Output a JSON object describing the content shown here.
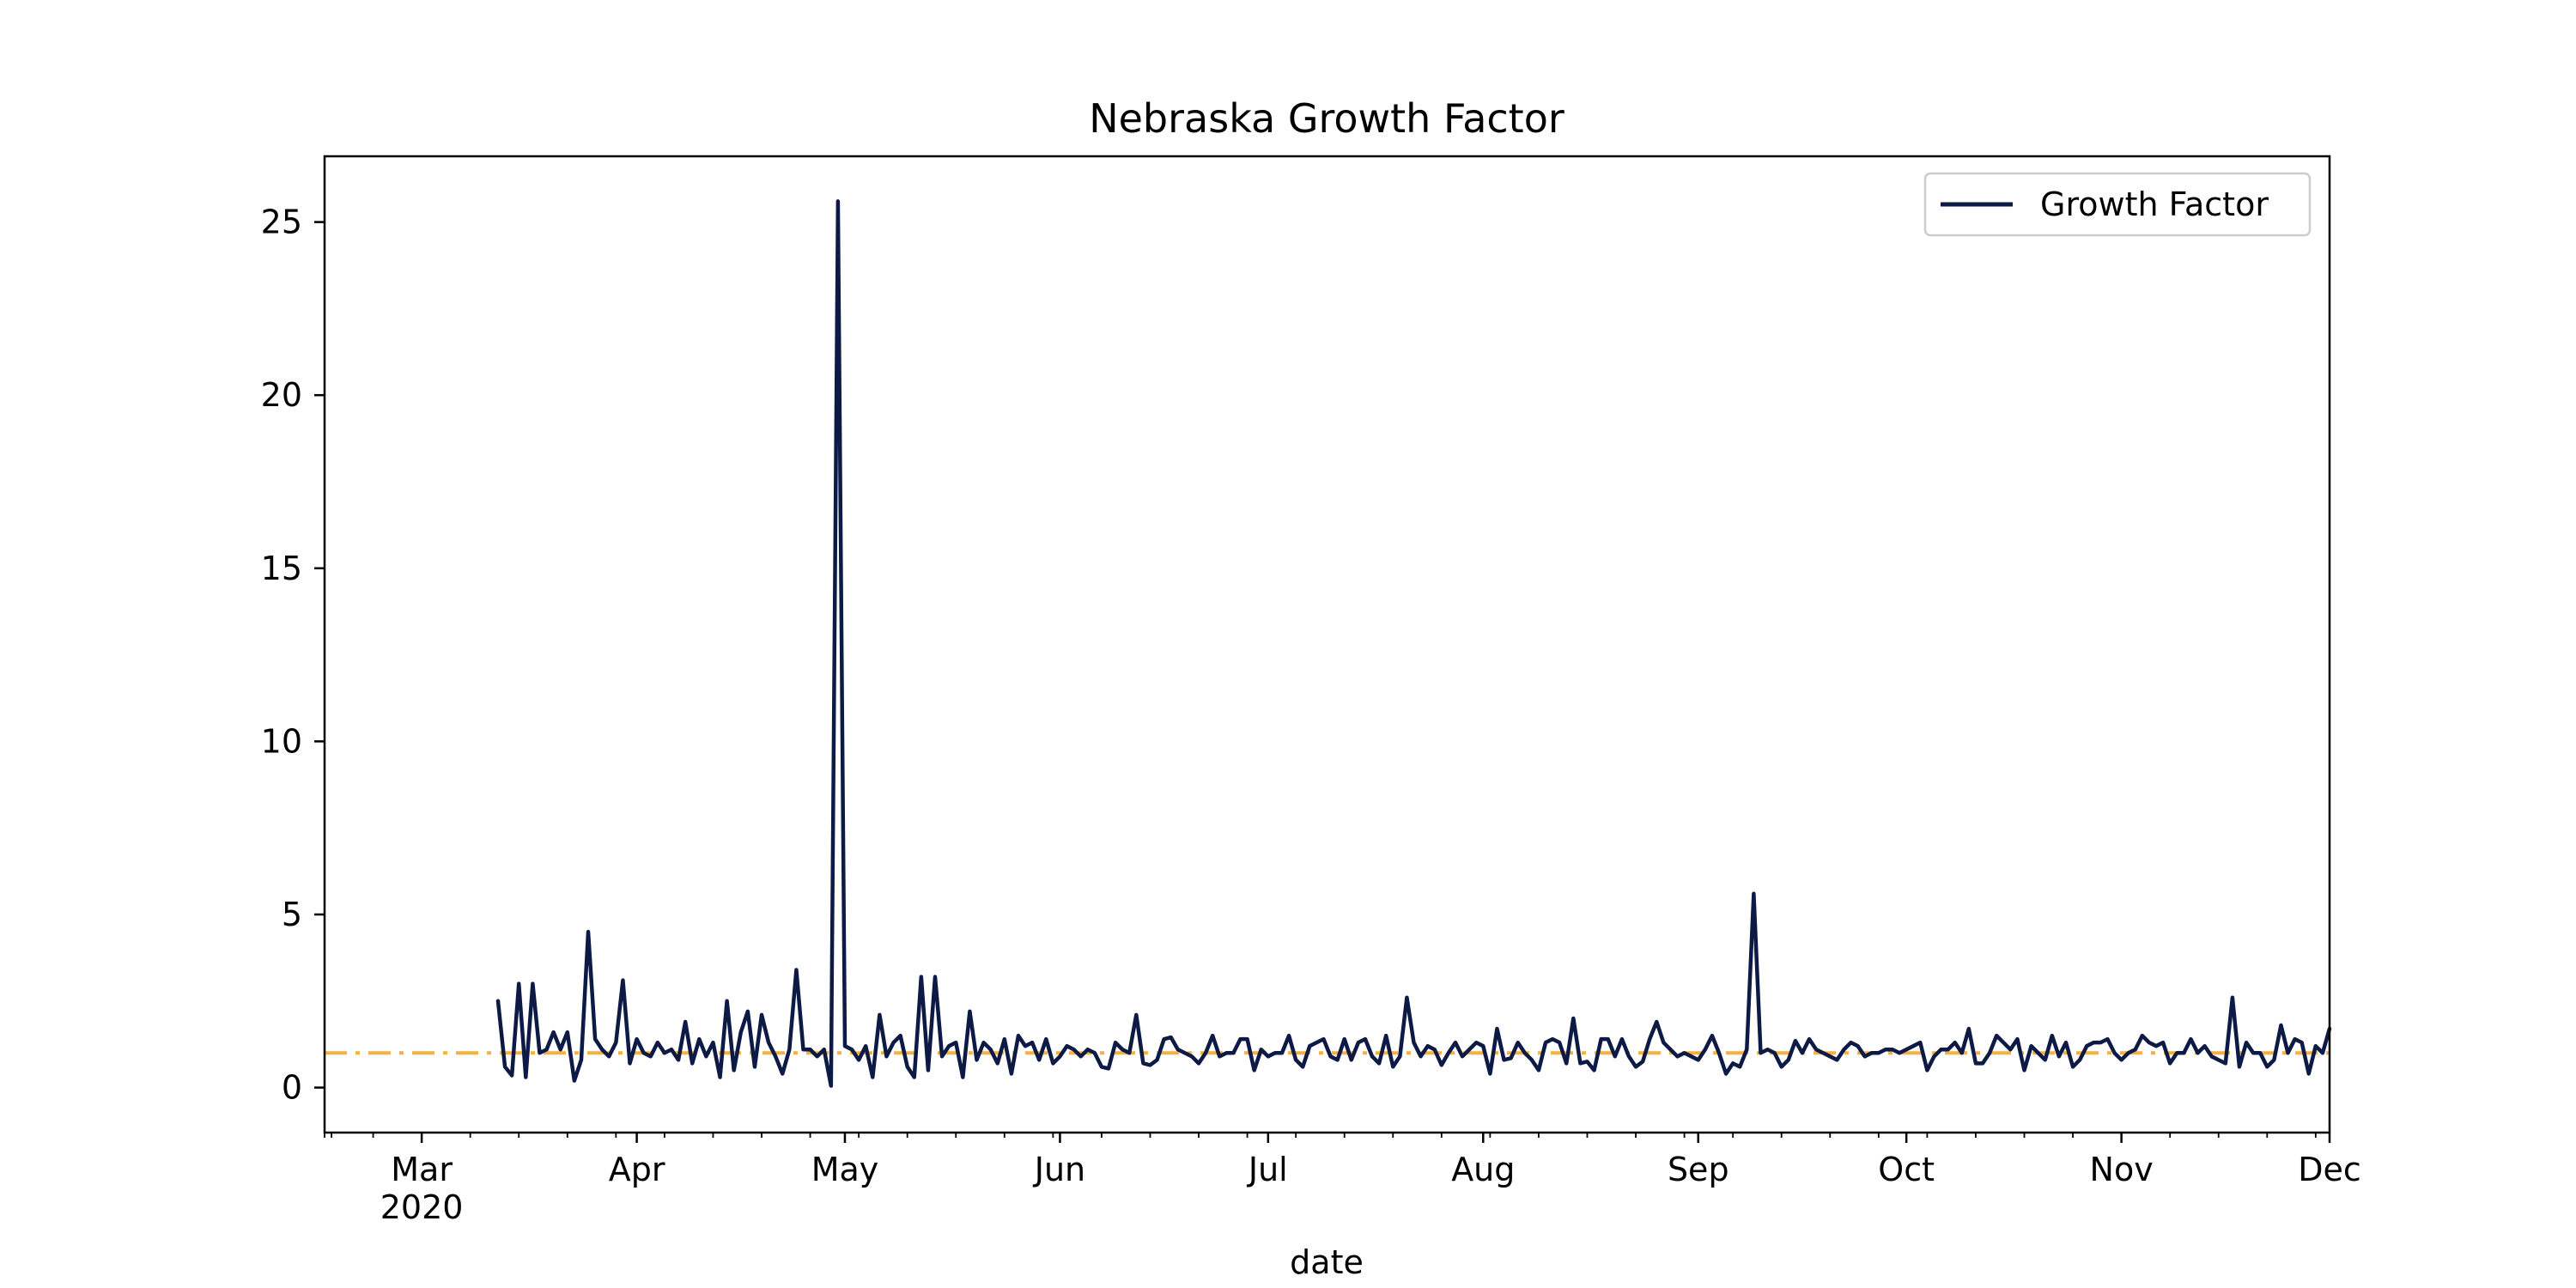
{
  "chart_data": {
    "type": "line",
    "title": "Nebraska Growth Factor",
    "xlabel": "date",
    "ylabel": "",
    "x_start": "2020-03-12",
    "x_step_days": 1,
    "xlim": [
      "2020-02-16",
      "2020-12-01"
    ],
    "ylim": [
      -1.3,
      26.9
    ],
    "yticks": [
      0,
      5,
      10,
      15,
      20,
      25
    ],
    "xticks": [
      {
        "date": "2020-03-01",
        "label": "Mar",
        "sublabel": "2020"
      },
      {
        "date": "2020-04-01",
        "label": "Apr"
      },
      {
        "date": "2020-05-01",
        "label": "May"
      },
      {
        "date": "2020-06-01",
        "label": "Jun"
      },
      {
        "date": "2020-07-01",
        "label": "Jul"
      },
      {
        "date": "2020-08-01",
        "label": "Aug"
      },
      {
        "date": "2020-09-01",
        "label": "Sep"
      },
      {
        "date": "2020-10-01",
        "label": "Oct"
      },
      {
        "date": "2020-11-01",
        "label": "Nov"
      },
      {
        "date": "2020-12-01",
        "label": "Dec"
      }
    ],
    "minor_xticks": [
      "2020-02-16",
      "2020-02-17",
      "2020-02-23"
    ],
    "reference_line": {
      "y": 1.0,
      "color": "#f5b041",
      "style": "dashdot"
    },
    "legend": {
      "position": "top-right"
    },
    "series": [
      {
        "name": "Growth Factor",
        "color": "#0c1a45",
        "values": [
          2.5,
          0.6,
          0.35,
          3.0,
          0.3,
          3.0,
          1.0,
          1.1,
          1.6,
          1.1,
          1.6,
          0.2,
          0.8,
          4.5,
          1.4,
          1.1,
          0.9,
          1.3,
          3.1,
          0.7,
          1.4,
          1.0,
          0.9,
          1.3,
          1.0,
          1.1,
          0.8,
          1.9,
          0.7,
          1.4,
          0.9,
          1.3,
          0.3,
          2.5,
          0.5,
          1.6,
          2.2,
          0.6,
          2.1,
          1.3,
          0.9,
          0.4,
          1.1,
          3.4,
          1.1,
          1.1,
          0.9,
          1.1,
          0.05,
          25.6,
          1.2,
          1.1,
          0.8,
          1.2,
          0.3,
          2.1,
          0.9,
          1.3,
          1.5,
          0.6,
          0.3,
          3.2,
          0.5,
          3.2,
          0.9,
          1.2,
          1.3,
          0.3,
          2.2,
          0.8,
          1.3,
          1.1,
          0.7,
          1.4,
          0.4,
          1.5,
          1.2,
          1.3,
          0.8,
          1.4,
          0.7,
          0.9,
          1.2,
          1.1,
          0.9,
          1.1,
          1.0,
          0.6,
          0.55,
          1.3,
          1.1,
          1.0,
          2.1,
          0.7,
          0.65,
          0.8,
          1.4,
          1.45,
          1.1,
          1.0,
          0.9,
          0.7,
          1.0,
          1.5,
          0.9,
          1.0,
          1.0,
          1.4,
          1.4,
          0.5,
          1.1,
          0.9,
          1.0,
          1.0,
          1.5,
          0.8,
          0.6,
          1.2,
          1.3,
          1.4,
          0.9,
          0.8,
          1.4,
          0.8,
          1.3,
          1.4,
          0.9,
          0.7,
          1.5,
          0.6,
          0.9,
          2.6,
          1.3,
          0.9,
          1.2,
          1.1,
          0.65,
          1.0,
          1.3,
          0.9,
          1.1,
          1.3,
          1.2,
          0.4,
          1.7,
          0.8,
          0.85,
          1.3,
          1.0,
          0.8,
          0.5,
          1.3,
          1.4,
          1.3,
          0.7,
          2.0,
          0.7,
          0.75,
          0.5,
          1.4,
          1.4,
          0.9,
          1.4,
          0.9,
          0.6,
          0.75,
          1.4,
          1.9,
          1.3,
          1.1,
          0.9,
          1.0,
          0.9,
          0.8,
          1.1,
          1.5,
          1.0,
          0.4,
          0.7,
          0.6,
          1.1,
          5.6,
          1.0,
          1.1,
          1.0,
          0.6,
          0.8,
          1.35,
          1.0,
          1.4,
          1.1,
          1.0,
          0.9,
          0.8,
          1.1,
          1.3,
          1.2,
          0.9,
          1.0,
          1.0,
          1.1,
          1.1,
          1.0,
          1.1,
          1.2,
          1.3,
          0.5,
          0.9,
          1.1,
          1.1,
          1.3,
          1.0,
          1.7,
          0.7,
          0.7,
          1.0,
          1.5,
          1.3,
          1.1,
          1.4,
          0.5,
          1.2,
          1.0,
          0.8,
          1.5,
          0.9,
          1.3,
          0.6,
          0.8,
          1.2,
          1.3,
          1.3,
          1.4,
          1.0,
          0.8,
          1.0,
          1.1,
          1.5,
          1.3,
          1.2,
          1.3,
          0.7,
          1.0,
          1.0,
          1.4,
          1.0,
          1.2,
          0.9,
          0.8,
          0.7,
          2.6,
          0.6,
          1.3,
          1.0,
          1.0,
          0.6,
          0.8,
          1.8,
          1.0,
          1.4,
          1.3,
          0.4,
          1.2,
          1.0,
          1.7
        ]
      }
    ]
  }
}
